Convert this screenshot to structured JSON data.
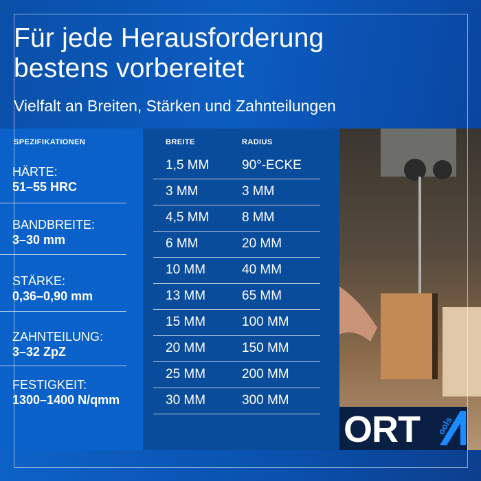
{
  "header": {
    "title_line1": "Für jede Herausforderung",
    "title_line2": "bestens vorbereitet",
    "subtitle": "Vielfalt an Breiten, Stärken und Zahnteilungen"
  },
  "specs": {
    "heading": "SPEZIFIKATIONEN",
    "items": [
      {
        "label": "HÄRTE:",
        "value": "51–55 HRC"
      },
      {
        "label": "BANDBREITE:",
        "value": "3–30 mm"
      },
      {
        "label": "STÄRKE:",
        "value": "0,36–0,90 mm"
      },
      {
        "label": "ZAHNTEILUNG:",
        "value": "3–32 ZpZ"
      },
      {
        "label": "FESTIGKEIT:",
        "value": "1300–1400 N/qmm"
      }
    ]
  },
  "table": {
    "headers": [
      "BREITE",
      "RADIUS"
    ],
    "rows": [
      [
        "1,5 MM",
        "90°-ECKE"
      ],
      [
        "3 MM",
        "3 MM"
      ],
      [
        "4,5 MM",
        "8 MM"
      ],
      [
        "6 MM",
        "20 MM"
      ],
      [
        "10 MM",
        "40 MM"
      ],
      [
        "13 MM",
        "65 MM"
      ],
      [
        "15 MM",
        "100 MM"
      ],
      [
        "20 MM",
        "150 MM"
      ],
      [
        "25 MM",
        "200 MM"
      ],
      [
        "30 MM",
        "300 MM"
      ]
    ]
  },
  "logo": {
    "text": "ORT",
    "small": "ools",
    "mark": "A"
  },
  "colors": {
    "brand_blue": "#0961c9",
    "dark_blue": "#0a4c9c",
    "logo_bg": "#0a1f44",
    "logo_accent": "#1a8cff"
  }
}
